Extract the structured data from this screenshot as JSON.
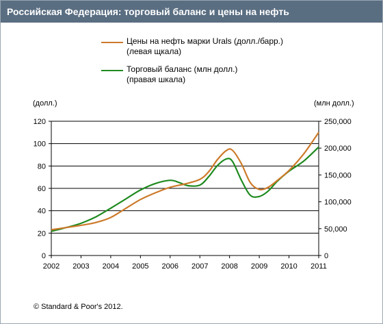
{
  "header": {
    "title": "Российская Федерация: торговый баланс и цены на нефть"
  },
  "legend": [
    {
      "line1": "Цены на нефть марки Urals (долл./барр.)",
      "line2": "(левая щкала)",
      "color": "#cc7a2a"
    },
    {
      "line1": "Торговый баланс (млн долл.)",
      "line2": "(правая шкала)",
      "color": "#1f8a1f"
    }
  ],
  "axes": {
    "left_unit": "(долл.)",
    "right_unit": "(млн долл.)"
  },
  "footer": {
    "copyright": "© Standard & Poor's 2012."
  },
  "chart_data": {
    "type": "line",
    "title": "Российская Федерация: торговый баланс и цены на нефть",
    "grid": true,
    "x_ticks": [
      "2002",
      "2003",
      "2004",
      "2005",
      "2006",
      "2007",
      "2008",
      "2009",
      "2010",
      "2011"
    ],
    "xlim": [
      2002,
      2011
    ],
    "y_left": {
      "label": "(долл.)",
      "lim": [
        0,
        120
      ],
      "ticks": [
        "0",
        "20",
        "40",
        "60",
        "80",
        "100",
        "120"
      ]
    },
    "y_right": {
      "label": "(млн долл.)",
      "lim": [
        0,
        250000
      ],
      "ticks": [
        "0",
        "50,000",
        "100,000",
        "150,000",
        "200,000",
        "250,000"
      ]
    },
    "series": [
      {
        "name": "Цены на нефть марки Urals (долл./барр.) (левая щкала)",
        "axis": "left",
        "color": "#cc7a2a",
        "x": [
          2002,
          2002.5,
          2003,
          2003.5,
          2004,
          2004.5,
          2005,
          2005.5,
          2006,
          2006.5,
          2007,
          2007.3,
          2007.6,
          2007.9,
          2008.1,
          2008.4,
          2008.7,
          2009.0,
          2009.3,
          2009.6,
          2010.0,
          2010.5,
          2011.0
        ],
        "y": [
          23,
          25,
          27,
          29.5,
          34,
          42,
          50,
          56,
          61,
          64,
          68,
          75,
          86,
          94,
          94,
          82,
          65,
          59,
          61,
          67,
          76,
          91,
          110
        ]
      },
      {
        "name": "Торговый баланс (млн долл.) (правая шкала)",
        "axis": "right",
        "color": "#1f8a1f",
        "x": [
          2002,
          2002.5,
          2003,
          2003.5,
          2004,
          2004.5,
          2005,
          2005.5,
          2006,
          2006.3,
          2006.6,
          2007,
          2007.3,
          2007.6,
          2007.9,
          2008.1,
          2008.4,
          2008.7,
          2009.0,
          2009.3,
          2009.6,
          2010.0,
          2010.5,
          2011.0
        ],
        "y": [
          45000,
          52000,
          60000,
          72000,
          88000,
          105000,
          122000,
          134000,
          140000,
          136000,
          130000,
          131000,
          147000,
          168000,
          180000,
          175000,
          140000,
          112000,
          110000,
          120000,
          138000,
          157000,
          176000,
          202000
        ]
      }
    ]
  }
}
